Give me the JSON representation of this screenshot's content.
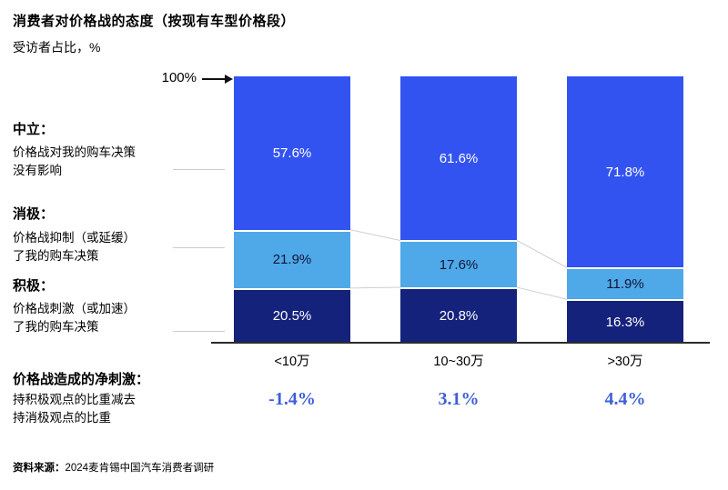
{
  "title": "消费者对价格战的态度（按现有车型价格段）",
  "subtitle": "受访者占比，%",
  "y_axis": {
    "top_label": "100%"
  },
  "colors": {
    "neutral_segment": "#3353F0",
    "negative_segment": "#4FA8E8",
    "positive_segment": "#14227C",
    "net_value_text": "#3E5FD8",
    "connector_line": "#cfcfcf"
  },
  "attitude_labels": [
    {
      "name": "中立：",
      "line1": "价格战对我的购车决策",
      "line2": "没有影响"
    },
    {
      "name": "消极：",
      "line1": "价格战抑制（或延缓）",
      "line2": "了我的购车决策"
    },
    {
      "name": "积极：",
      "line1": "价格战刺激（或加速）",
      "line2": "了我的购车决策"
    }
  ],
  "net_stimulus": {
    "title": "价格战造成的净刺激：",
    "desc_line1": "持积极观点的比重减去",
    "desc_line2": "持消极观点的比重",
    "values": [
      "-1.4%",
      "3.1%",
      "4.4%"
    ]
  },
  "source": {
    "prefix": "资料来源：",
    "text": "2024麦肯锡中国汽车消费者调研"
  },
  "chart_data": {
    "type": "bar",
    "stacked": true,
    "unit": "%",
    "ylim": [
      0,
      100
    ],
    "categories": [
      "<10万",
      "10~30万",
      ">30万"
    ],
    "series_order": "top-to-bottom",
    "series": [
      {
        "name": "中立",
        "values": [
          57.6,
          61.6,
          71.8
        ],
        "color": "#3353F0",
        "label_color": "#ffffff"
      },
      {
        "name": "消极",
        "values": [
          21.9,
          17.6,
          11.9
        ],
        "color": "#4FA8E8",
        "label_color": "#101638"
      },
      {
        "name": "积极",
        "values": [
          20.5,
          20.8,
          16.3
        ],
        "color": "#14227C",
        "label_color": "#ffffff"
      }
    ],
    "net_values": [
      -1.4,
      3.1,
      4.4
    ]
  }
}
